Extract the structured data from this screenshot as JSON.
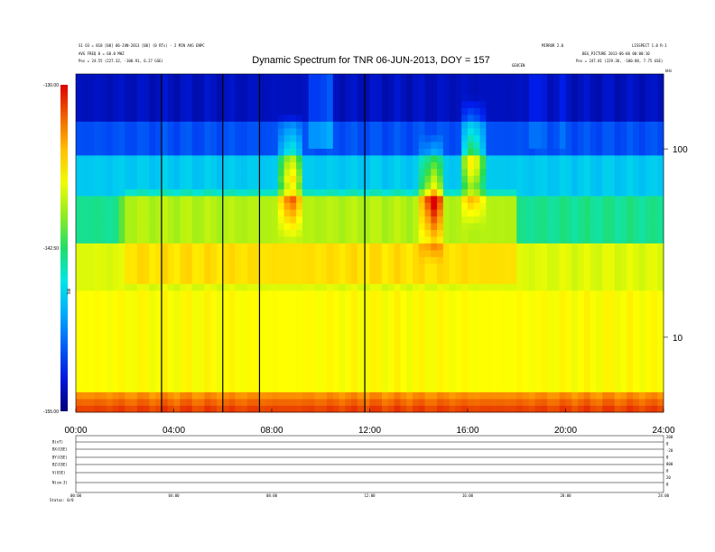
{
  "chart_data": {
    "type": "heatmap",
    "title": "Dynamic Spectrum for TNR 06-JUN-2013, DOY = 157",
    "header": {
      "left_line1": "S1 O3 = 818 [00] 06-JUN-2013 [00] (0 RTs) - 2 MIN AVG ENPC",
      "left_line2": "AVG FREQ 0 = 60.0 MHZ",
      "left_pos": "Pos = 24.55 (227.32, -100.91, 6.27 GSE)",
      "right_line1": "MIRROR 2.0",
      "right_line2": "LISSPECT 1.0 R-1",
      "right_line3": "BEG_PICTURE 2013-06-06 00:00:10",
      "right_pos": "Pos = 247.81 (229.36, -100.88, 7.75 GSE)",
      "mid_label": "GEOCEN",
      "corner_label": "kHz"
    },
    "colorbar": {
      "label": "TNR",
      "ticks": [
        "-130.00",
        "-142.50",
        "-155.00"
      ],
      "min": -155.0,
      "max": -130.0
    },
    "x_axis": {
      "ticks": [
        "00:00",
        "04:00",
        "08:00",
        "12:00",
        "16:00",
        "20:00",
        "24:00"
      ],
      "range_hours": [
        0,
        24
      ]
    },
    "y_axis": {
      "scale": "log",
      "ticks": [
        "100",
        "10"
      ],
      "unit": "kHz",
      "range_khz": [
        4,
        250
      ]
    },
    "vertical_lines_hours": [
      3.5,
      6.0,
      7.5,
      11.8
    ],
    "background_features": [
      {
        "t": 8.8,
        "f": 70,
        "type": "burst"
      },
      {
        "t": 14.6,
        "f": 55,
        "type": "burst"
      },
      {
        "t": 16.2,
        "f": 85,
        "type": "burst"
      }
    ],
    "aux_panels": {
      "labels": [
        "B(nT)",
        "BX(GSE)",
        "BY(GSE)",
        "BZ(GSE)",
        "V(GSE)",
        "N(cm-3)"
      ],
      "right_labels": [
        "200",
        "0",
        "-20",
        "0",
        "800",
        "0",
        "20",
        "0"
      ],
      "x_ticks": [
        "00:00",
        "04:00",
        "08:00",
        "12:00",
        "16:00",
        "20:00",
        "24:00"
      ],
      "footer": "Status: 0/0"
    }
  }
}
